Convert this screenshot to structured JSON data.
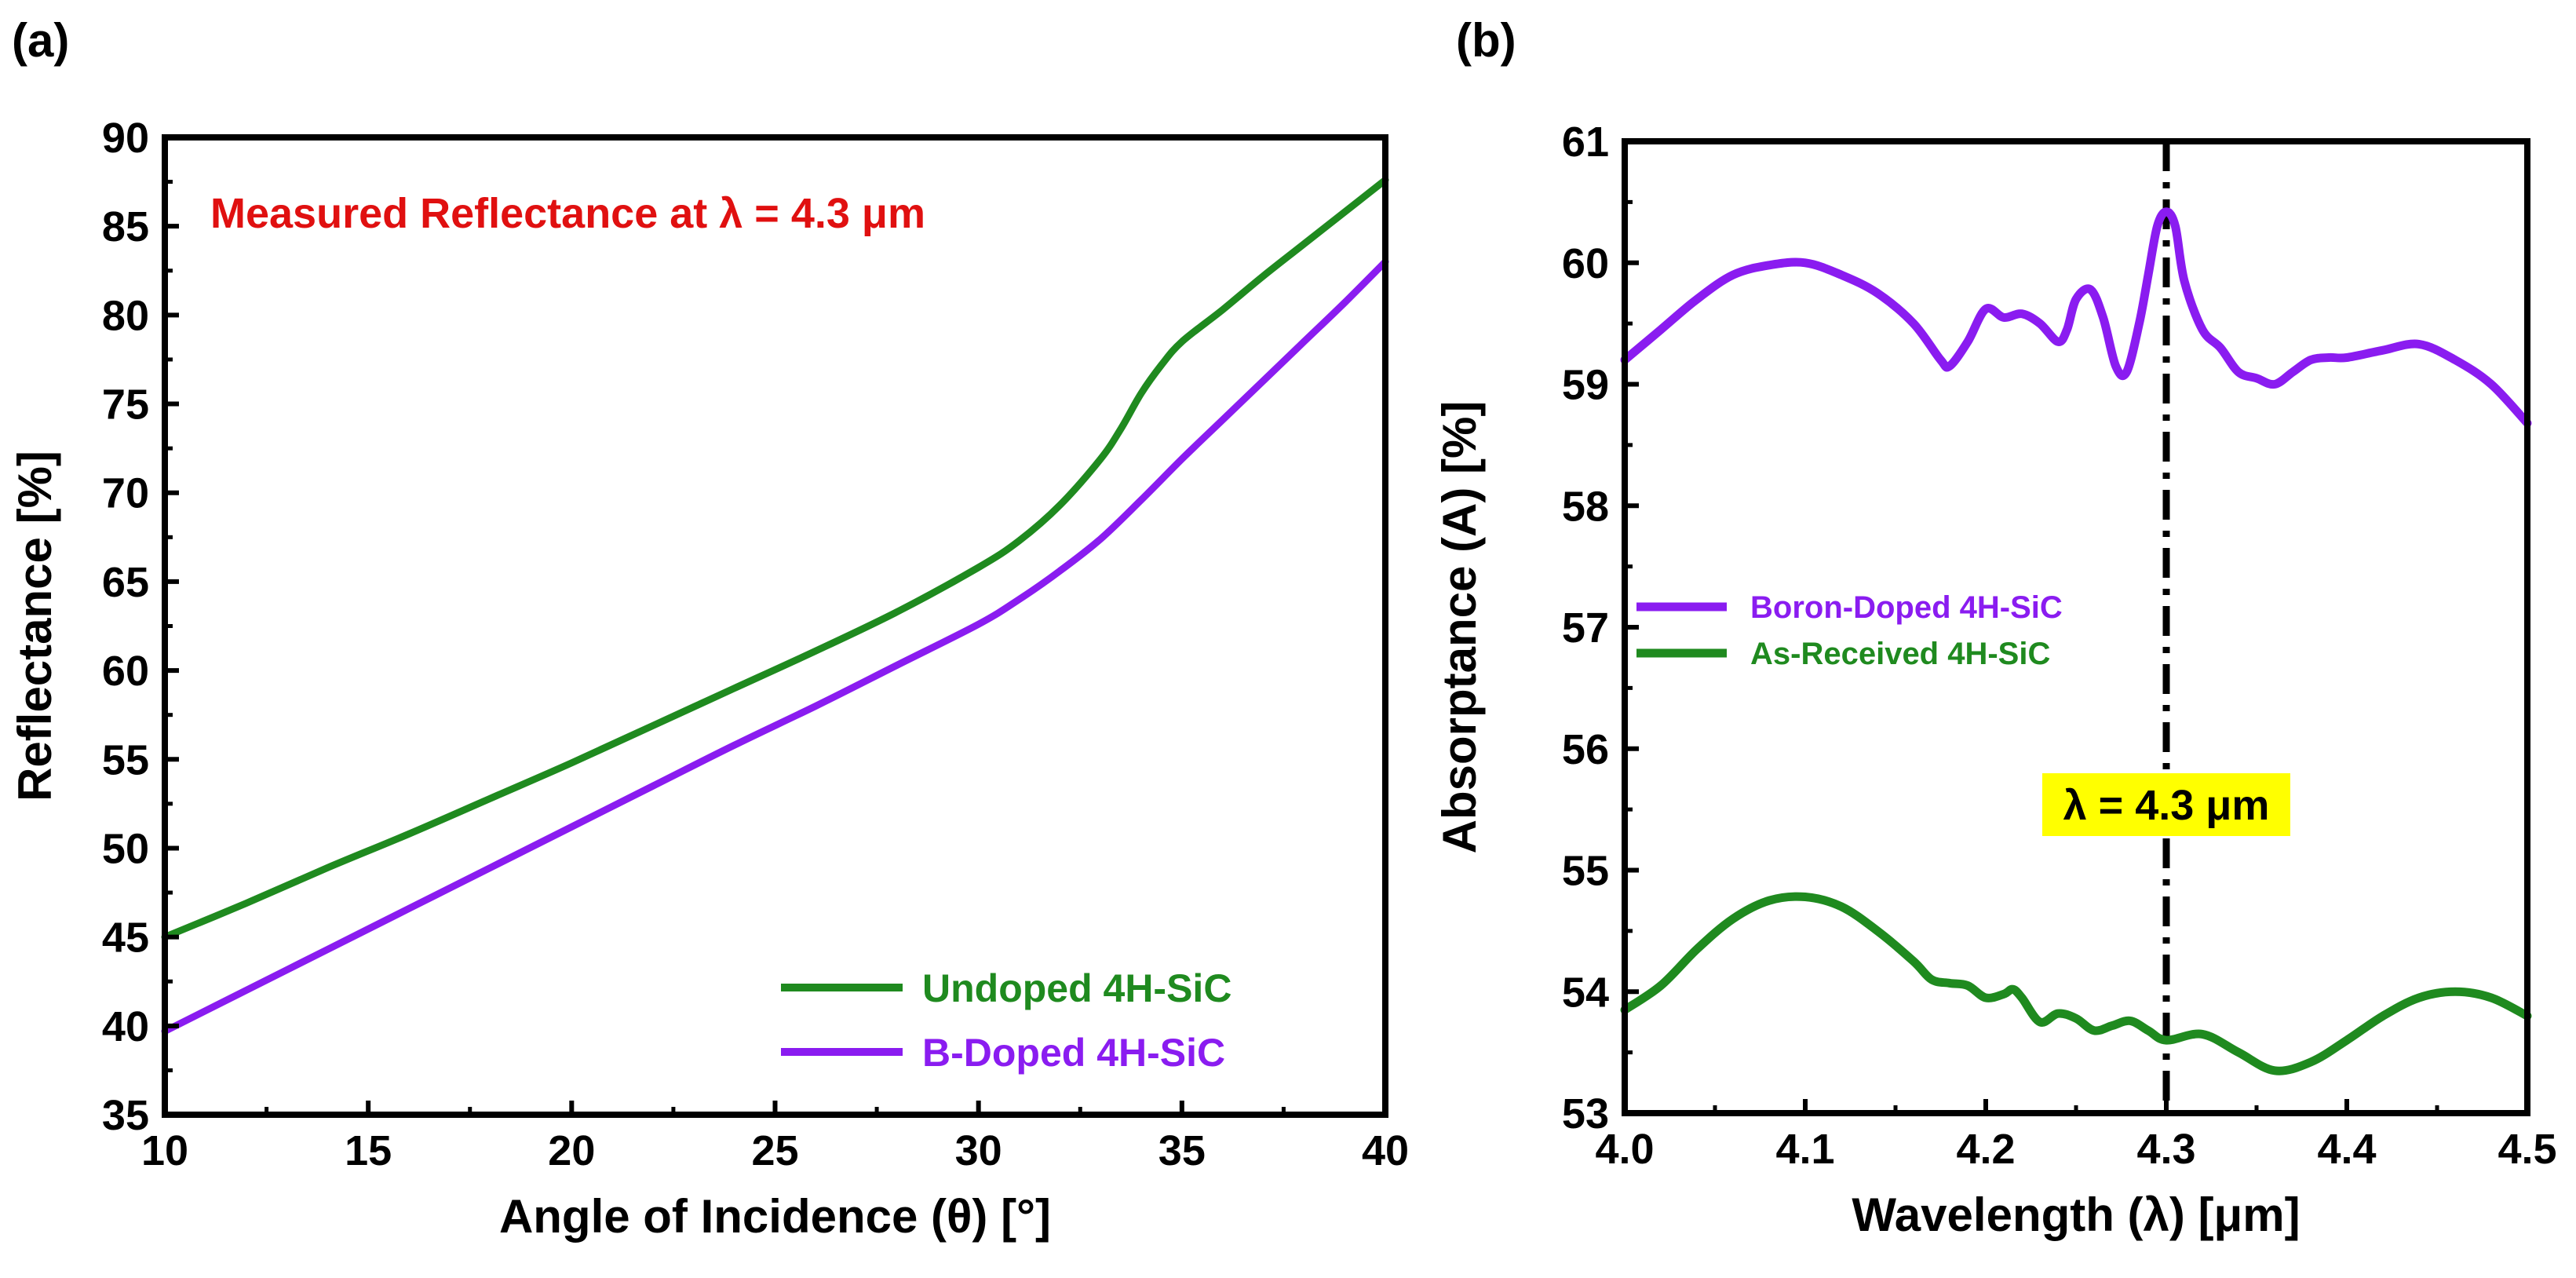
{
  "figure": {
    "panel_a_label": "(a)",
    "panel_b_label": "(b)"
  },
  "chart_data": [
    {
      "type": "line",
      "panel": "(a)",
      "title": "",
      "annotation": "Measured Reflectance at λ = 4.3 μm",
      "annotation_color": "#e01010",
      "xlabel": "Angle of Incidence (θ) [°]",
      "ylabel": "Reflectance [%]",
      "xlim": [
        10,
        40
      ],
      "ylim": [
        35,
        90
      ],
      "xticks": [
        10,
        15,
        20,
        25,
        30,
        35,
        40
      ],
      "yticks": [
        35,
        40,
        45,
        50,
        55,
        60,
        65,
        70,
        75,
        80,
        85,
        90
      ],
      "legend_position": "bottom-right",
      "series": [
        {
          "name": "Undoped 4H-SiC",
          "color": "#1f8a1f",
          "x": [
            10,
            12,
            14,
            16,
            18,
            20,
            22,
            24,
            26,
            28,
            30,
            31,
            32,
            33,
            33.5,
            34,
            34.5,
            35,
            36,
            37,
            38,
            39,
            40
          ],
          "y": [
            45.0,
            46.9,
            48.9,
            50.8,
            52.8,
            54.8,
            56.9,
            59.0,
            61.1,
            63.3,
            65.8,
            67.3,
            69.3,
            71.9,
            73.6,
            75.6,
            77.2,
            78.5,
            80.3,
            82.2,
            84.0,
            85.8,
            87.6
          ]
        },
        {
          "name": "B-Doped 4H-SiC",
          "color": "#8a1cf0",
          "x": [
            10,
            12,
            14,
            16,
            18,
            20,
            22,
            24,
            26,
            28,
            30,
            31,
            32,
            33,
            34,
            35,
            36,
            37,
            38,
            39,
            40
          ],
          "y": [
            39.7,
            42.0,
            44.3,
            46.6,
            48.9,
            51.2,
            53.5,
            55.8,
            58.0,
            60.3,
            62.6,
            64.0,
            65.6,
            67.4,
            69.6,
            71.9,
            74.1,
            76.3,
            78.5,
            80.7,
            83.0
          ]
        }
      ]
    },
    {
      "type": "line",
      "panel": "(b)",
      "title": "",
      "xlabel": "Wavelength (λ) [μm]",
      "ylabel": "Absorptance (A) [%]",
      "xlim": [
        4.0,
        4.5
      ],
      "ylim": [
        53,
        61
      ],
      "xticks": [
        "4.0",
        "4.1",
        "4.2",
        "4.3",
        "4.4",
        "4.5"
      ],
      "yticks": [
        53,
        54,
        55,
        56,
        57,
        58,
        59,
        60,
        61
      ],
      "legend_position": "middle-left",
      "vline": {
        "x": 4.3,
        "label": "λ = 4.3 μm",
        "label_bg": "#ffff00"
      },
      "series": [
        {
          "name": "Boron-Doped 4H-SiC",
          "color": "#8a1cf0",
          "x": [
            4.0,
            4.02,
            4.04,
            4.06,
            4.08,
            4.1,
            4.12,
            4.14,
            4.16,
            4.175,
            4.18,
            4.19,
            4.2,
            4.21,
            4.22,
            4.23,
            4.24,
            4.245,
            4.25,
            4.258,
            4.265,
            4.272,
            4.278,
            4.285,
            4.29,
            4.295,
            4.3,
            4.305,
            4.31,
            4.32,
            4.33,
            4.34,
            4.35,
            4.36,
            4.37,
            4.38,
            4.39,
            4.4,
            4.42,
            4.44,
            4.46,
            4.48,
            4.5
          ],
          "y": [
            59.2,
            59.45,
            59.7,
            59.9,
            59.98,
            60.0,
            59.9,
            59.75,
            59.5,
            59.2,
            59.15,
            59.35,
            59.62,
            59.55,
            59.58,
            59.5,
            59.35,
            59.45,
            59.7,
            59.78,
            59.55,
            59.15,
            59.1,
            59.5,
            59.9,
            60.3,
            60.42,
            60.3,
            59.85,
            59.45,
            59.3,
            59.1,
            59.05,
            59.0,
            59.1,
            59.2,
            59.22,
            59.22,
            59.28,
            59.33,
            59.2,
            59.0,
            58.68
          ]
        },
        {
          "name": "As-Received 4H-SiC",
          "color": "#1f8a1f",
          "x": [
            4.0,
            4.02,
            4.04,
            4.06,
            4.08,
            4.1,
            4.12,
            4.14,
            4.16,
            4.17,
            4.18,
            4.19,
            4.2,
            4.21,
            4.215,
            4.22,
            4.23,
            4.24,
            4.25,
            4.26,
            4.27,
            4.28,
            4.29,
            4.3,
            4.32,
            4.34,
            4.36,
            4.38,
            4.4,
            4.42,
            4.44,
            4.46,
            4.48,
            4.5
          ],
          "y": [
            53.85,
            54.05,
            54.35,
            54.6,
            54.75,
            54.78,
            54.7,
            54.5,
            54.25,
            54.1,
            54.07,
            54.05,
            53.95,
            53.98,
            54.02,
            53.95,
            53.75,
            53.82,
            53.78,
            53.68,
            53.72,
            53.76,
            53.68,
            53.6,
            53.65,
            53.5,
            53.35,
            53.42,
            53.6,
            53.8,
            53.95,
            54.0,
            53.95,
            53.8
          ]
        }
      ]
    }
  ]
}
